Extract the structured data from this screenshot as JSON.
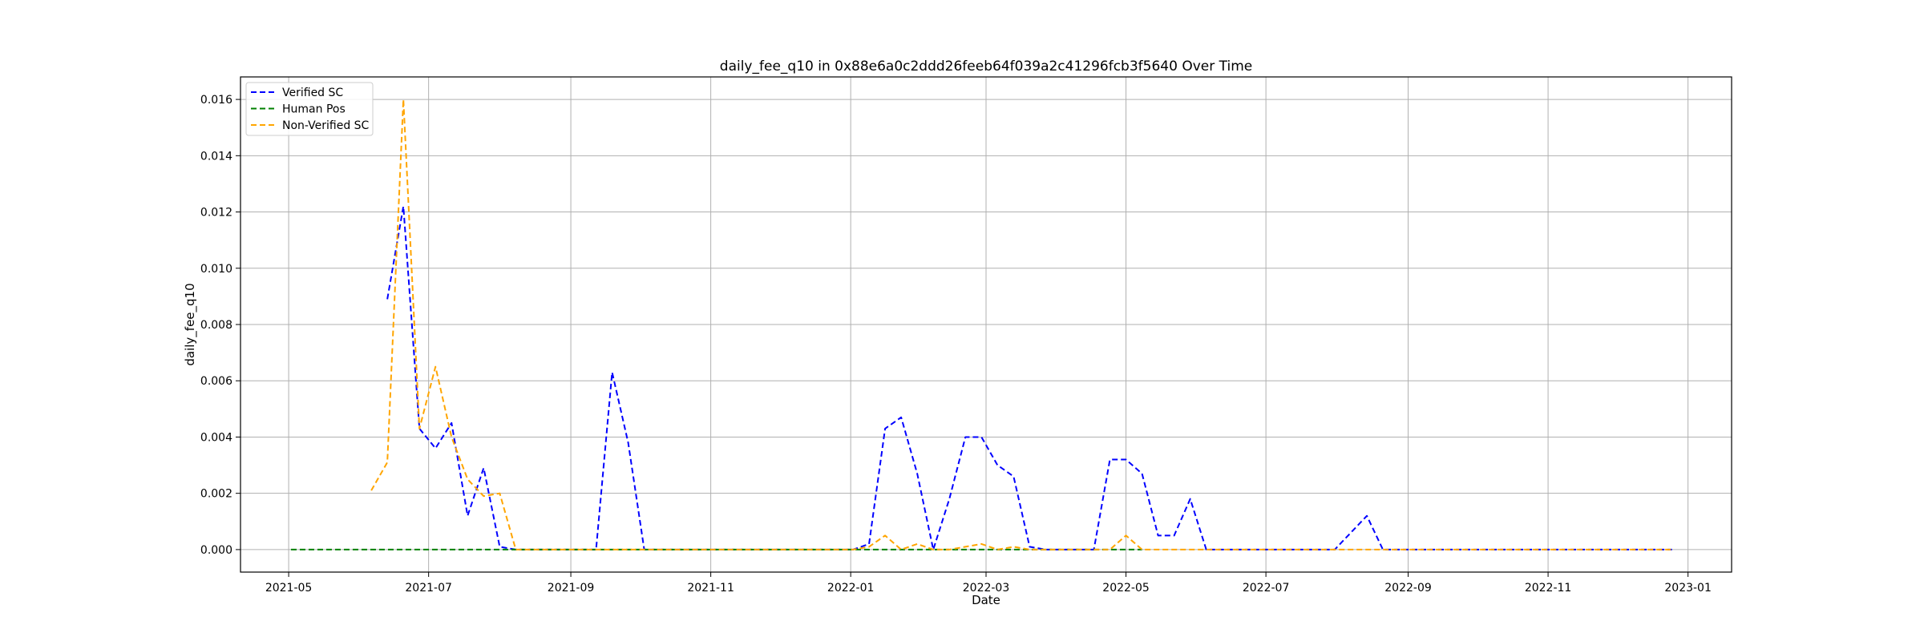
{
  "chart_data": {
    "type": "line",
    "title": "daily_fee_q10 in 0x88e6a0c2ddd26feeb64f039a2c41296fcb3f5640 Over Time",
    "xlabel": "Date",
    "ylabel": "daily_fee_q10",
    "xlim": [
      "2021-04-10",
      "2023-01-20"
    ],
    "ylim": [
      -0.0008,
      0.0168
    ],
    "x_ticks": [
      "2021-05-01",
      "2021-07-01",
      "2021-09-01",
      "2021-11-01",
      "2022-01-01",
      "2022-03-01",
      "2022-05-01",
      "2022-07-01",
      "2022-09-01",
      "2022-11-01",
      "2023-01-01"
    ],
    "x_tick_labels": [
      "2021-05",
      "2021-07",
      "2021-09",
      "2021-11",
      "2022-01",
      "2022-03",
      "2022-05",
      "2022-07",
      "2022-09",
      "2022-11",
      "2023-01"
    ],
    "y_ticks": [
      0.0,
      0.002,
      0.004,
      0.006,
      0.008,
      0.01,
      0.012,
      0.014,
      0.016
    ],
    "y_tick_labels": [
      "0.000",
      "0.002",
      "0.004",
      "0.006",
      "0.008",
      "0.010",
      "0.012",
      "0.014",
      "0.016"
    ],
    "grid": true,
    "legend_position": "top-left",
    "series": [
      {
        "name": "Verified SC",
        "color": "#0000ff",
        "style": "dashed",
        "points": [
          [
            "2021-06-13",
            0.0089
          ],
          [
            "2021-06-20",
            0.0122
          ],
          [
            "2021-06-27",
            0.0043
          ],
          [
            "2021-07-04",
            0.0036
          ],
          [
            "2021-07-11",
            0.0045
          ],
          [
            "2021-07-18",
            0.0012
          ],
          [
            "2021-07-25",
            0.0029
          ],
          [
            "2021-08-01",
            0.0001
          ],
          [
            "2021-08-08",
            0.0
          ],
          [
            "2021-08-15",
            0.0
          ],
          [
            "2021-08-22",
            0.0
          ],
          [
            "2021-08-29",
            0.0
          ],
          [
            "2021-09-05",
            0.0
          ],
          [
            "2021-09-12",
            0.0
          ],
          [
            "2021-09-19",
            0.0063
          ],
          [
            "2021-09-26",
            0.0038
          ],
          [
            "2021-10-03",
            0.0
          ],
          [
            "2021-10-10",
            0.0
          ],
          [
            "2021-10-17",
            0.0
          ],
          [
            "2021-10-24",
            0.0
          ],
          [
            "2021-10-31",
            0.0
          ],
          [
            "2021-11-07",
            0.0
          ],
          [
            "2021-11-14",
            0.0
          ],
          [
            "2021-11-21",
            0.0
          ],
          [
            "2021-11-28",
            0.0
          ],
          [
            "2021-12-05",
            0.0
          ],
          [
            "2021-12-12",
            0.0
          ],
          [
            "2021-12-19",
            0.0
          ],
          [
            "2021-12-26",
            0.0
          ],
          [
            "2022-01-02",
            0.0
          ],
          [
            "2022-01-09",
            0.0002
          ],
          [
            "2022-01-16",
            0.0043
          ],
          [
            "2022-01-23",
            0.0047
          ],
          [
            "2022-01-30",
            0.0027
          ],
          [
            "2022-02-06",
            0.0
          ],
          [
            "2022-02-13",
            0.0018
          ],
          [
            "2022-02-20",
            0.004
          ],
          [
            "2022-02-27",
            0.004
          ],
          [
            "2022-03-06",
            0.003
          ],
          [
            "2022-03-13",
            0.0026
          ],
          [
            "2022-03-20",
            0.0001
          ],
          [
            "2022-03-27",
            0.0
          ],
          [
            "2022-04-03",
            0.0
          ],
          [
            "2022-04-10",
            0.0
          ],
          [
            "2022-04-17",
            0.0
          ],
          [
            "2022-04-24",
            0.0032
          ],
          [
            "2022-05-01",
            0.0032
          ],
          [
            "2022-05-08",
            0.0027
          ],
          [
            "2022-05-15",
            0.0005
          ],
          [
            "2022-05-22",
            0.0005
          ],
          [
            "2022-05-29",
            0.0018
          ],
          [
            "2022-06-05",
            0.0
          ],
          [
            "2022-06-12",
            0.0
          ],
          [
            "2022-06-19",
            0.0
          ],
          [
            "2022-06-26",
            0.0
          ],
          [
            "2022-07-03",
            0.0
          ],
          [
            "2022-07-10",
            0.0
          ],
          [
            "2022-07-17",
            0.0
          ],
          [
            "2022-07-24",
            0.0
          ],
          [
            "2022-07-31",
            0.0
          ],
          [
            "2022-08-07",
            0.0006
          ],
          [
            "2022-08-14",
            0.0012
          ],
          [
            "2022-08-21",
            0.0
          ],
          [
            "2022-08-28",
            0.0
          ],
          [
            "2022-09-04",
            0.0
          ],
          [
            "2022-09-11",
            0.0
          ],
          [
            "2022-09-18",
            0.0
          ],
          [
            "2022-09-25",
            0.0
          ],
          [
            "2022-10-02",
            0.0
          ],
          [
            "2022-10-09",
            0.0
          ],
          [
            "2022-10-16",
            0.0
          ],
          [
            "2022-10-23",
            0.0
          ],
          [
            "2022-10-30",
            0.0
          ],
          [
            "2022-11-06",
            0.0
          ],
          [
            "2022-11-13",
            0.0
          ],
          [
            "2022-11-20",
            0.0
          ],
          [
            "2022-11-27",
            0.0
          ],
          [
            "2022-12-04",
            0.0
          ],
          [
            "2022-12-11",
            0.0
          ],
          [
            "2022-12-18",
            0.0
          ],
          [
            "2022-12-25",
            0.0
          ]
        ]
      },
      {
        "name": "Human Pos",
        "color": "#008000",
        "style": "dashed",
        "points": [
          [
            "2021-05-02",
            0.0
          ],
          [
            "2021-06-01",
            0.0
          ],
          [
            "2021-07-01",
            0.0
          ],
          [
            "2021-08-01",
            0.0
          ],
          [
            "2021-09-01",
            0.0
          ],
          [
            "2021-10-01",
            0.0
          ],
          [
            "2021-11-01",
            0.0
          ],
          [
            "2021-12-01",
            0.0
          ],
          [
            "2022-01-01",
            0.0
          ],
          [
            "2022-02-01",
            0.0
          ],
          [
            "2022-03-01",
            0.0
          ],
          [
            "2022-04-01",
            0.0
          ],
          [
            "2022-05-08",
            0.0
          ]
        ]
      },
      {
        "name": "Non-Verified SC",
        "color": "#ffa500",
        "style": "dashed",
        "points": [
          [
            "2021-06-06",
            0.0021
          ],
          [
            "2021-06-13",
            0.0031
          ],
          [
            "2021-06-20",
            0.016
          ],
          [
            "2021-06-27",
            0.0043
          ],
          [
            "2021-07-04",
            0.0065
          ],
          [
            "2021-07-11",
            0.004
          ],
          [
            "2021-07-18",
            0.0025
          ],
          [
            "2021-07-25",
            0.0019
          ],
          [
            "2021-08-01",
            0.002
          ],
          [
            "2021-08-08",
            0.0
          ],
          [
            "2021-08-15",
            0.0
          ],
          [
            "2021-08-22",
            0.0
          ],
          [
            "2021-08-29",
            0.0
          ],
          [
            "2021-09-05",
            0.0
          ],
          [
            "2021-09-12",
            0.0
          ],
          [
            "2021-09-19",
            0.0
          ],
          [
            "2021-09-26",
            0.0
          ],
          [
            "2021-10-03",
            0.0
          ],
          [
            "2021-10-10",
            0.0
          ],
          [
            "2021-10-17",
            0.0
          ],
          [
            "2021-10-24",
            0.0
          ],
          [
            "2021-10-31",
            0.0
          ],
          [
            "2021-11-07",
            0.0
          ],
          [
            "2021-11-14",
            0.0
          ],
          [
            "2021-11-21",
            0.0
          ],
          [
            "2021-11-28",
            0.0
          ],
          [
            "2021-12-05",
            0.0
          ],
          [
            "2021-12-12",
            0.0
          ],
          [
            "2021-12-19",
            0.0
          ],
          [
            "2021-12-26",
            0.0
          ],
          [
            "2022-01-02",
            0.0
          ],
          [
            "2022-01-09",
            0.0001
          ],
          [
            "2022-01-16",
            0.0005
          ],
          [
            "2022-01-23",
            0.0
          ],
          [
            "2022-01-30",
            0.0002
          ],
          [
            "2022-02-06",
            0.0
          ],
          [
            "2022-02-13",
            0.0
          ],
          [
            "2022-02-20",
            0.0001
          ],
          [
            "2022-02-27",
            0.0002
          ],
          [
            "2022-03-06",
            0.0
          ],
          [
            "2022-03-13",
            0.0001
          ],
          [
            "2022-03-20",
            0.0
          ],
          [
            "2022-03-27",
            0.0
          ],
          [
            "2022-04-03",
            0.0
          ],
          [
            "2022-04-10",
            0.0
          ],
          [
            "2022-04-17",
            0.0
          ],
          [
            "2022-04-24",
            0.0
          ],
          [
            "2022-05-01",
            0.0005
          ],
          [
            "2022-05-08",
            0.0
          ],
          [
            "2022-05-15",
            0.0
          ],
          [
            "2022-05-22",
            0.0
          ],
          [
            "2022-05-29",
            0.0
          ],
          [
            "2022-06-05",
            0.0
          ],
          [
            "2022-06-12",
            0.0
          ],
          [
            "2022-06-19",
            0.0
          ],
          [
            "2022-06-26",
            0.0
          ],
          [
            "2022-07-03",
            0.0
          ],
          [
            "2022-07-10",
            0.0
          ],
          [
            "2022-07-17",
            0.0
          ],
          [
            "2022-07-24",
            0.0
          ],
          [
            "2022-07-31",
            0.0
          ],
          [
            "2022-08-07",
            0.0
          ],
          [
            "2022-08-14",
            0.0
          ],
          [
            "2022-08-21",
            0.0
          ],
          [
            "2022-08-28",
            0.0
          ],
          [
            "2022-09-04",
            0.0
          ],
          [
            "2022-09-11",
            0.0
          ],
          [
            "2022-09-18",
            0.0
          ],
          [
            "2022-09-25",
            0.0
          ],
          [
            "2022-10-02",
            0.0
          ],
          [
            "2022-10-09",
            0.0
          ],
          [
            "2022-10-16",
            0.0
          ],
          [
            "2022-10-23",
            0.0
          ],
          [
            "2022-10-30",
            0.0
          ],
          [
            "2022-11-06",
            0.0
          ],
          [
            "2022-11-13",
            0.0
          ],
          [
            "2022-11-20",
            0.0
          ],
          [
            "2022-11-27",
            0.0
          ],
          [
            "2022-12-04",
            0.0
          ],
          [
            "2022-12-11",
            0.0
          ],
          [
            "2022-12-18",
            0.0
          ],
          [
            "2022-12-25",
            0.0
          ]
        ]
      }
    ]
  }
}
